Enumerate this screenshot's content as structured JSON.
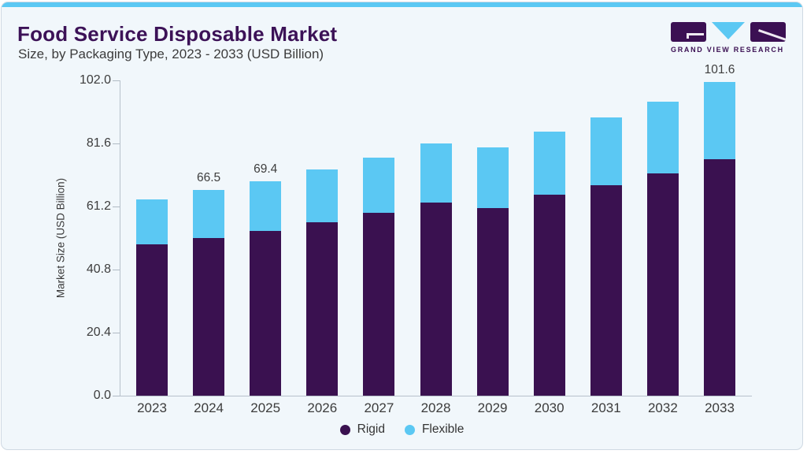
{
  "header": {
    "title": "Food Service Disposable Market",
    "subtitle": "Size, by Packaging Type, 2023 - 2033 (USD Billion)"
  },
  "logo": {
    "brand": "GRAND VIEW RESEARCH",
    "purple": "#3b1053",
    "blue": "#5bc8f3"
  },
  "chart_data": {
    "type": "bar",
    "stacked": true,
    "title": "Food Service Disposable Market Size, by Packaging Type, 2023 - 2033 (USD Billion)",
    "categories": [
      "2023",
      "2024",
      "2025",
      "2026",
      "2027",
      "2028",
      "2029",
      "2030",
      "2031",
      "2032",
      "2033"
    ],
    "series": [
      {
        "name": "Rigid",
        "color": "#3a1150",
        "values": [
          48.9,
          51.1,
          53.2,
          56.2,
          59.1,
          62.4,
          60.7,
          64.9,
          68.1,
          71.9,
          76.6
        ]
      },
      {
        "name": "Flexible",
        "color": "#5bc8f3",
        "values": [
          14.5,
          15.4,
          16.2,
          17.1,
          18.0,
          19.2,
          19.5,
          20.5,
          21.9,
          23.2,
          25.0
        ]
      }
    ],
    "totals": [
      63.4,
      66.5,
      69.4,
      73.3,
      77.1,
      81.6,
      80.2,
      85.4,
      90.0,
      95.1,
      101.6
    ],
    "bar_labels": [
      "",
      "66.5",
      "69.4",
      "",
      "",
      "",
      "",
      "",
      "",
      "",
      "101.6"
    ],
    "xlabel": "",
    "ylabel": "Market Size (USD Billion)",
    "ylim": [
      0,
      102.0
    ],
    "y_ticks": [
      0.0,
      20.4,
      40.8,
      61.2,
      81.6,
      102.0
    ],
    "y_tick_labels": [
      "0.0",
      "20.4",
      "40.8",
      "61.2",
      "81.6",
      "102.0"
    ],
    "grid": false,
    "legend": [
      "Rigid",
      "Flexible"
    ],
    "legend_position": "bottom"
  }
}
